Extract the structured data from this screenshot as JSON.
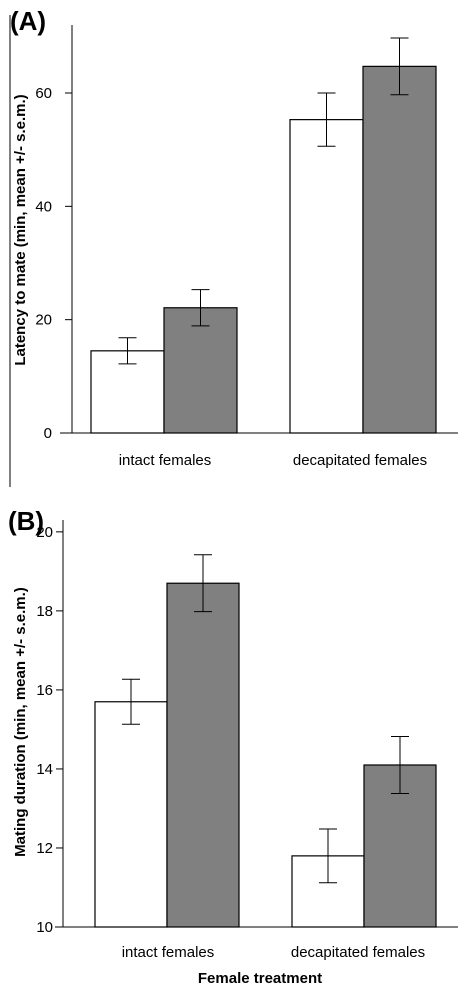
{
  "chart_data": [
    {
      "panel": "(A)",
      "type": "bar",
      "ylabel": "Latency to mate (min, mean +/- s.e.m.)",
      "xlabel": "",
      "categories": [
        "intact females",
        "decapitated females"
      ],
      "yticks": [
        "0",
        "20",
        "40",
        "60"
      ],
      "ylim": [
        0,
        72
      ],
      "series": [
        {
          "color": "#ffffff",
          "values": [
            14.5,
            55.3
          ],
          "errors": [
            2.3,
            4.7
          ]
        },
        {
          "color": "#808080",
          "values": [
            22.1,
            64.7
          ],
          "errors": [
            3.2,
            5.0
          ]
        }
      ],
      "grid": false
    },
    {
      "panel": "(B)",
      "type": "bar",
      "ylabel": "Mating duration (min, mean +/- s.e.m.)",
      "xlabel": "Female treatment",
      "categories": [
        "intact females",
        "decapitated females"
      ],
      "yticks": [
        "10",
        "12",
        "14",
        "16",
        "18",
        "20"
      ],
      "ylim": [
        10,
        20.3
      ],
      "series": [
        {
          "color": "#ffffff",
          "values": [
            15.7,
            11.8
          ],
          "errors": [
            0.57,
            0.68
          ]
        },
        {
          "color": "#808080",
          "values": [
            18.7,
            14.1
          ],
          "errors": [
            0.72,
            0.72
          ]
        }
      ],
      "grid": false
    }
  ]
}
